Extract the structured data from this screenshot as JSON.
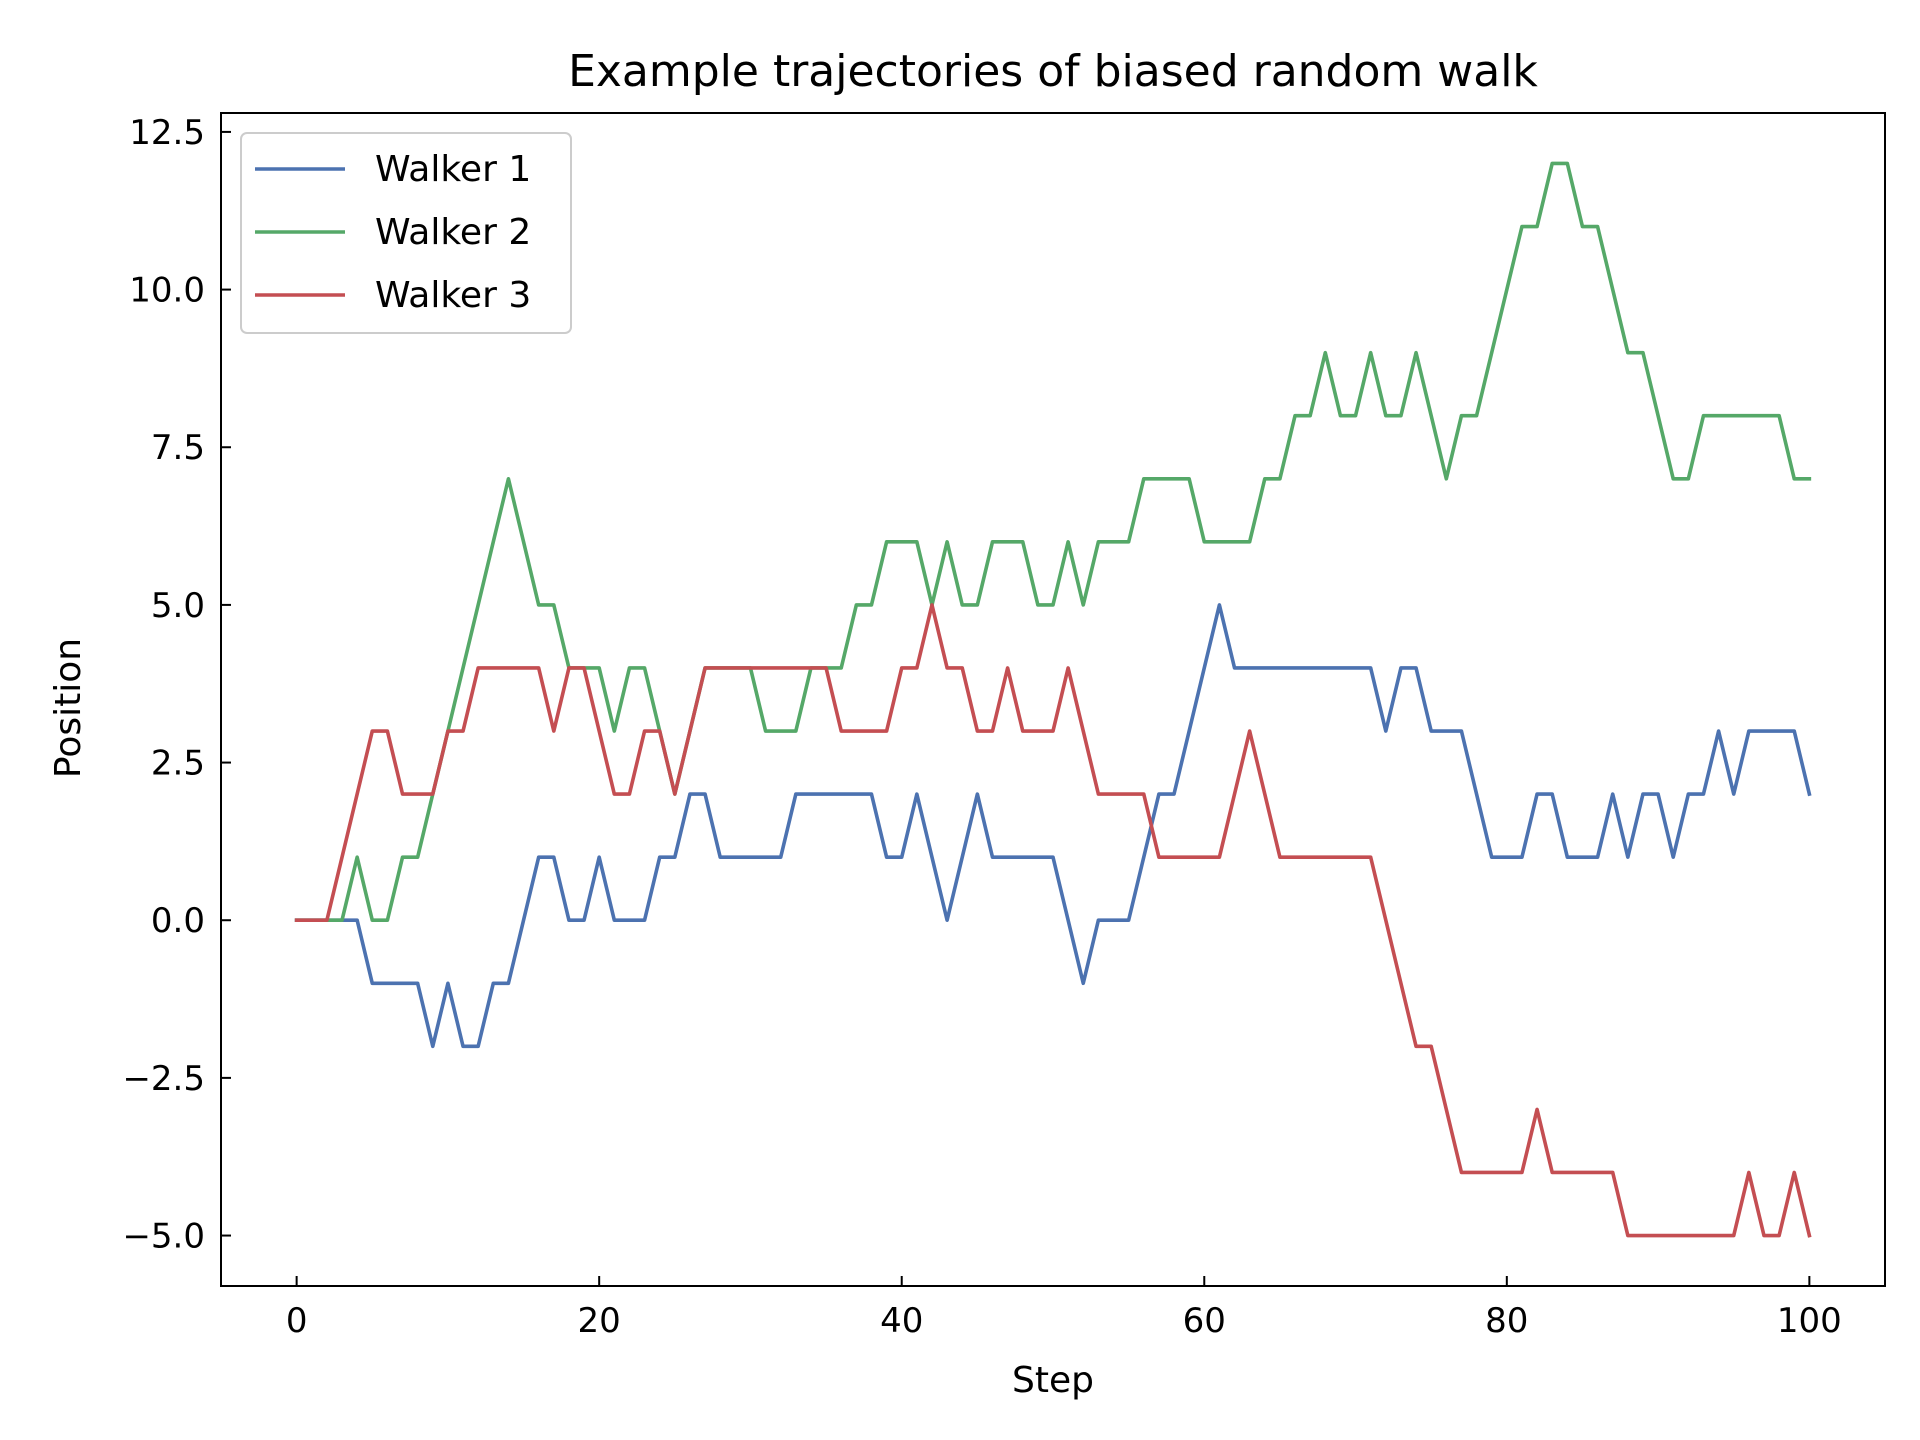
{
  "chart_data": {
    "type": "line",
    "title": "Example trajectories of biased random walk",
    "xlabel": "Step",
    "ylabel": "Position",
    "xlim": [
      -5,
      105
    ],
    "ylim": [
      -5.8,
      12.8
    ],
    "xticks": [
      0,
      20,
      40,
      60,
      80,
      100
    ],
    "yticks": [
      -5.0,
      -2.5,
      0.0,
      2.5,
      5.0,
      7.5,
      10.0,
      12.5
    ],
    "xtick_labels": [
      "0",
      "20",
      "40",
      "60",
      "80",
      "100"
    ],
    "ytick_labels": [
      "−5.0",
      "−2.5",
      "0.0",
      "2.5",
      "5.0",
      "7.5",
      "10.0",
      "12.5"
    ],
    "grid": false,
    "legend_position": "top-left",
    "x": [
      0,
      1,
      2,
      3,
      4,
      5,
      6,
      7,
      8,
      9,
      10,
      11,
      12,
      13,
      14,
      15,
      16,
      17,
      18,
      19,
      20,
      21,
      22,
      23,
      24,
      25,
      26,
      27,
      28,
      29,
      30,
      31,
      32,
      33,
      34,
      35,
      36,
      37,
      38,
      39,
      40,
      41,
      42,
      43,
      44,
      45,
      46,
      47,
      48,
      49,
      50,
      51,
      52,
      53,
      54,
      55,
      56,
      57,
      58,
      59,
      60,
      61,
      62,
      63,
      64,
      65,
      66,
      67,
      68,
      69,
      70,
      71,
      72,
      73,
      74,
      75,
      76,
      77,
      78,
      79,
      80,
      81,
      82,
      83,
      84,
      85,
      86,
      87,
      88,
      89,
      90,
      91,
      92,
      93,
      94,
      95,
      96,
      97,
      98,
      99,
      100
    ],
    "series": [
      {
        "name": "Walker 1",
        "color": "#4c72b0",
        "values": [
          0,
          0,
          0,
          0,
          0,
          -1,
          -1,
          -1,
          -1,
          -2,
          -1,
          -2,
          -2,
          -1,
          -1,
          0,
          1,
          1,
          0,
          0,
          1,
          0,
          0,
          0,
          1,
          1,
          2,
          2,
          1,
          1,
          1,
          1,
          1,
          2,
          2,
          2,
          2,
          2,
          2,
          1,
          1,
          2,
          1,
          0,
          1,
          2,
          1,
          1,
          1,
          1,
          1,
          0,
          -1,
          0,
          0,
          0,
          1,
          2,
          2,
          3,
          4,
          5,
          4,
          4,
          4,
          4,
          4,
          4,
          4,
          4,
          4,
          4,
          3,
          4,
          4,
          3,
          3,
          3,
          2,
          1,
          1,
          1,
          2,
          2,
          1,
          1,
          1,
          2,
          1,
          2,
          2,
          1,
          2,
          2,
          3,
          2,
          3,
          3,
          3,
          3,
          2
        ]
      },
      {
        "name": "Walker 2",
        "color": "#55a868",
        "values": [
          0,
          0,
          0,
          0,
          1,
          0,
          0,
          1,
          1,
          2,
          3,
          4,
          5,
          6,
          7,
          6,
          5,
          5,
          4,
          4,
          4,
          3,
          4,
          4,
          3,
          2,
          3,
          4,
          4,
          4,
          4,
          3,
          3,
          3,
          4,
          4,
          4,
          5,
          5,
          6,
          6,
          6,
          5,
          6,
          5,
          5,
          6,
          6,
          6,
          5,
          5,
          6,
          5,
          6,
          6,
          6,
          7,
          7,
          7,
          7,
          6,
          6,
          6,
          6,
          7,
          7,
          8,
          8,
          9,
          8,
          8,
          9,
          8,
          8,
          9,
          8,
          7,
          8,
          8,
          9,
          10,
          11,
          11,
          12,
          12,
          11,
          11,
          10,
          9,
          9,
          8,
          7,
          7,
          8,
          8,
          8,
          8,
          8,
          8,
          7,
          7
        ]
      },
      {
        "name": "Walker 3",
        "color": "#c44e52",
        "values": [
          0,
          0,
          0,
          1,
          2,
          3,
          3,
          2,
          2,
          2,
          3,
          3,
          4,
          4,
          4,
          4,
          4,
          3,
          4,
          4,
          3,
          2,
          2,
          3,
          3,
          2,
          3,
          4,
          4,
          4,
          4,
          4,
          4,
          4,
          4,
          4,
          3,
          3,
          3,
          3,
          4,
          4,
          5,
          4,
          4,
          3,
          3,
          4,
          3,
          3,
          3,
          4,
          3,
          2,
          2,
          2,
          2,
          1,
          1,
          1,
          1,
          1,
          2,
          3,
          2,
          1,
          1,
          1,
          1,
          1,
          1,
          1,
          0,
          -1,
          -2,
          -2,
          -3,
          -4,
          -4,
          -4,
          -4,
          -4,
          -3,
          -4,
          -4,
          -4,
          -4,
          -4,
          -5,
          -5,
          -5,
          -5,
          -5,
          -5,
          -5,
          -5,
          -4,
          -5,
          -5,
          -4,
          -5
        ]
      }
    ]
  }
}
